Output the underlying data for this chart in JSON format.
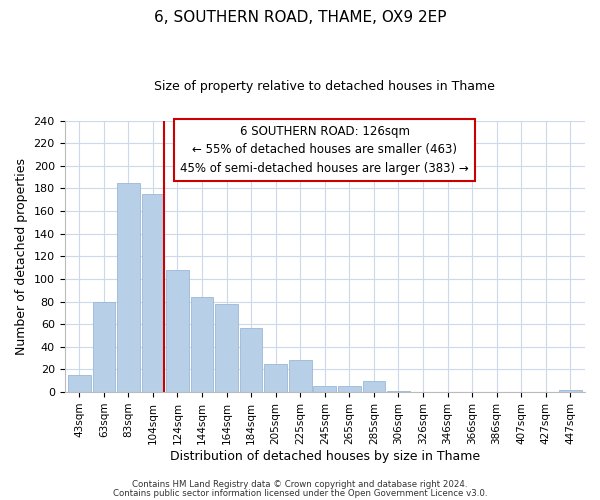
{
  "title": "6, SOUTHERN ROAD, THAME, OX9 2EP",
  "subtitle": "Size of property relative to detached houses in Thame",
  "xlabel": "Distribution of detached houses by size in Thame",
  "ylabel": "Number of detached properties",
  "bar_labels": [
    "43sqm",
    "63sqm",
    "83sqm",
    "104sqm",
    "124sqm",
    "144sqm",
    "164sqm",
    "184sqm",
    "205sqm",
    "225sqm",
    "245sqm",
    "265sqm",
    "285sqm",
    "306sqm",
    "326sqm",
    "346sqm",
    "366sqm",
    "386sqm",
    "407sqm",
    "427sqm",
    "447sqm"
  ],
  "bar_values": [
    15,
    80,
    185,
    175,
    108,
    84,
    78,
    57,
    25,
    28,
    5,
    5,
    10,
    1,
    0,
    0,
    0,
    0,
    0,
    0,
    2
  ],
  "bar_color": "#b8cfe8",
  "bar_edge_color": "#9ab8d8",
  "ylim": [
    0,
    240
  ],
  "yticks": [
    0,
    20,
    40,
    60,
    80,
    100,
    120,
    140,
    160,
    180,
    200,
    220,
    240
  ],
  "annotation_title": "6 SOUTHERN ROAD: 126sqm",
  "annotation_line1": "← 55% of detached houses are smaller (463)",
  "annotation_line2": "45% of semi-detached houses are larger (383) →",
  "footer_line1": "Contains HM Land Registry data © Crown copyright and database right 2024.",
  "footer_line2": "Contains public sector information licensed under the Open Government Licence v3.0.",
  "highlight_line_color": "#cc0000",
  "box_edge_color": "#cc0000",
  "background_color": "#ffffff",
  "grid_color": "#ccd8ec",
  "title_fontsize": 11,
  "subtitle_fontsize": 9,
  "tick_fontsize": 8,
  "label_fontsize": 9
}
